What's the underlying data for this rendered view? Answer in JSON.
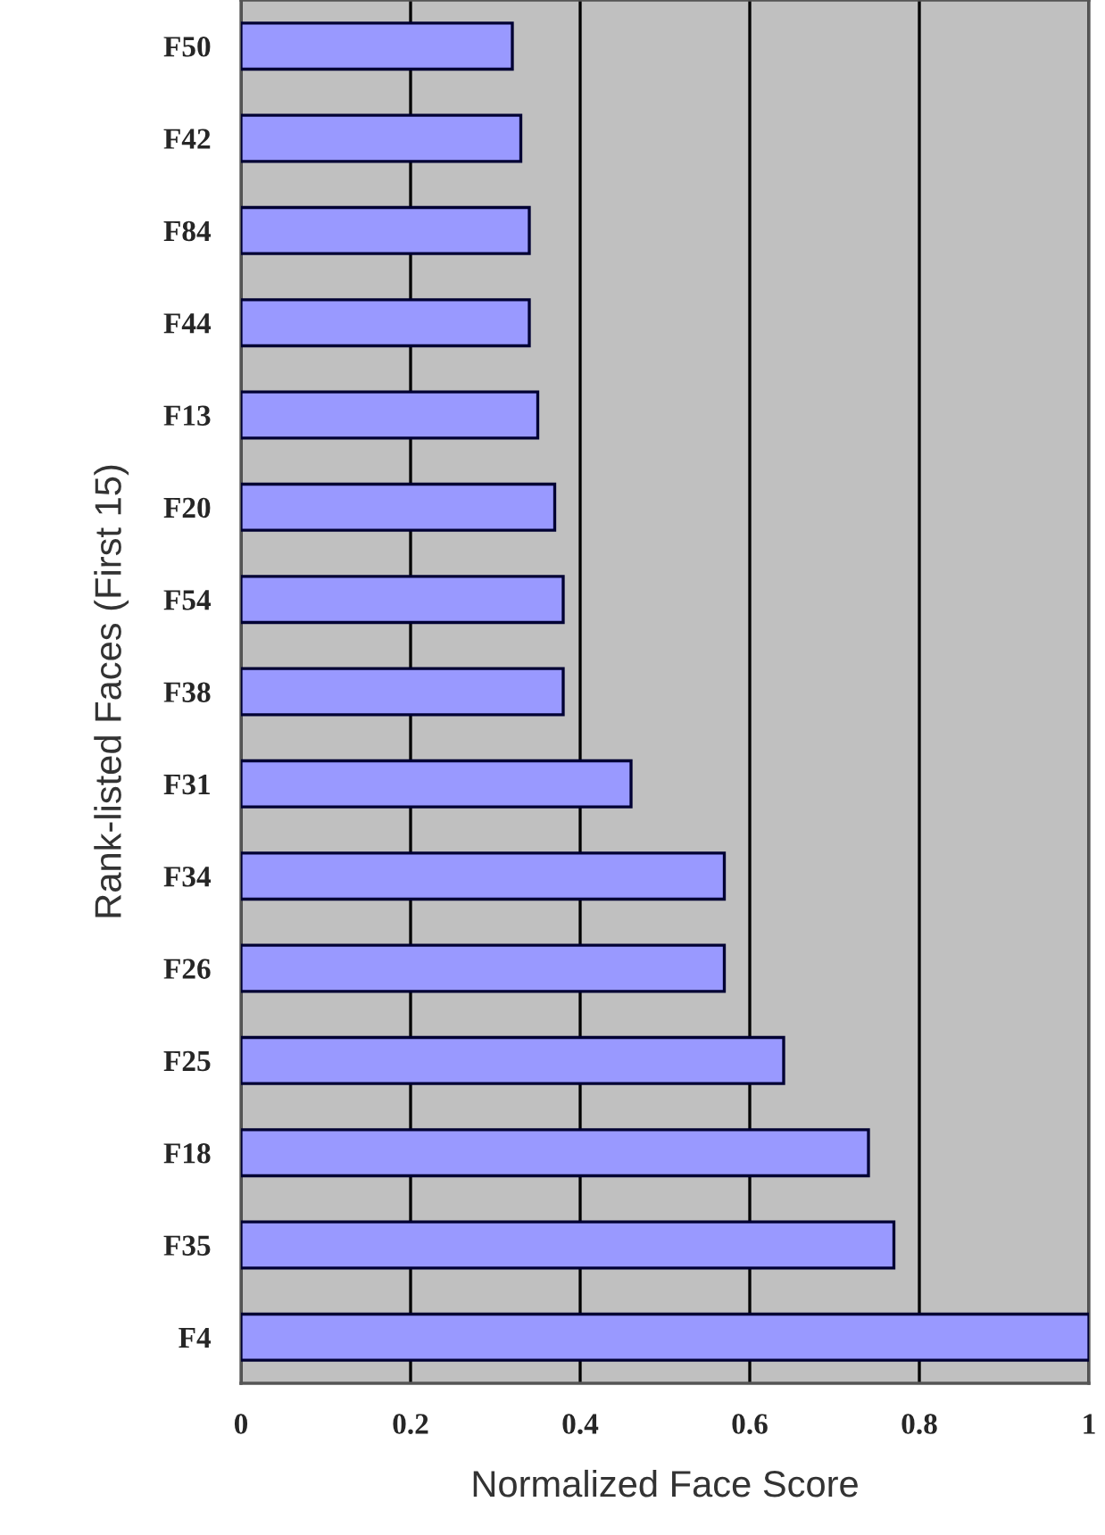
{
  "chart_data": {
    "type": "bar",
    "orientation": "horizontal",
    "xlabel": "Normalized Face Score",
    "ylabel": "Rank-listed Faces (First 15)",
    "categories": [
      "F50",
      "F42",
      "F84",
      "F44",
      "F13",
      "F20",
      "F54",
      "F38",
      "F31",
      "F34",
      "F26",
      "F25",
      "F18",
      "F35",
      "F4"
    ],
    "values": [
      0.32,
      0.33,
      0.34,
      0.34,
      0.35,
      0.37,
      0.38,
      0.38,
      0.46,
      0.57,
      0.57,
      0.64,
      0.74,
      0.77,
      1.0
    ],
    "color": "#9999ff",
    "xlim": [
      0,
      1
    ],
    "xticks": [
      0,
      0.2,
      0.4,
      0.6,
      0.8,
      1
    ],
    "grid": "x"
  }
}
